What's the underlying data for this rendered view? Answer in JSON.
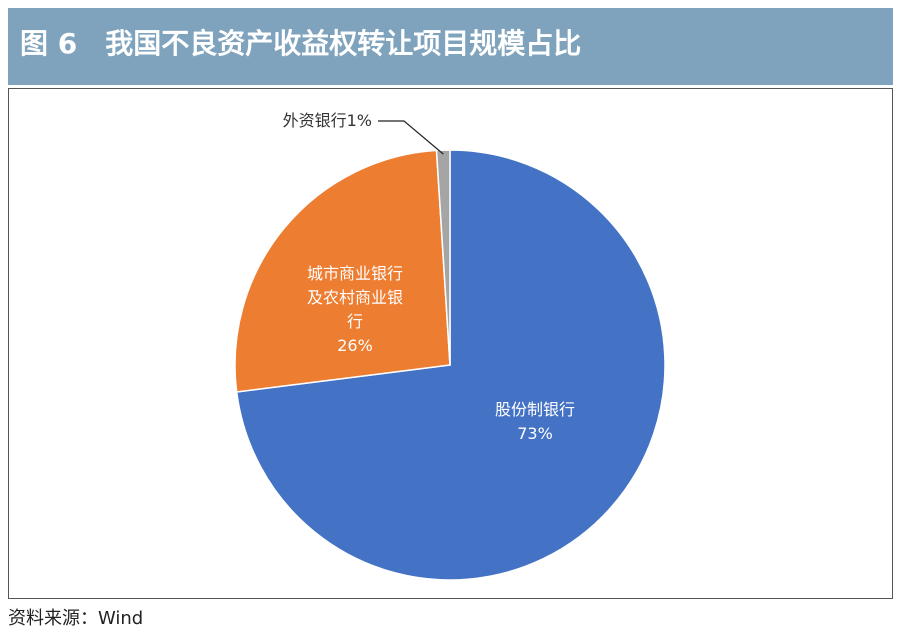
{
  "chart_data": {
    "type": "pie",
    "title": "图 6　我国不良资产收益权转让项目规模占比",
    "categories": [
      "股份制银行",
      "城市商业银行及农村商业银行",
      "外资银行"
    ],
    "values": [
      73,
      26,
      1
    ],
    "value_labels": [
      "73%",
      "26%",
      "1%"
    ],
    "colors": [
      "#4472c4",
      "#ed7d31",
      "#a5a5a5"
    ],
    "source": "资料来源：Wind"
  }
}
